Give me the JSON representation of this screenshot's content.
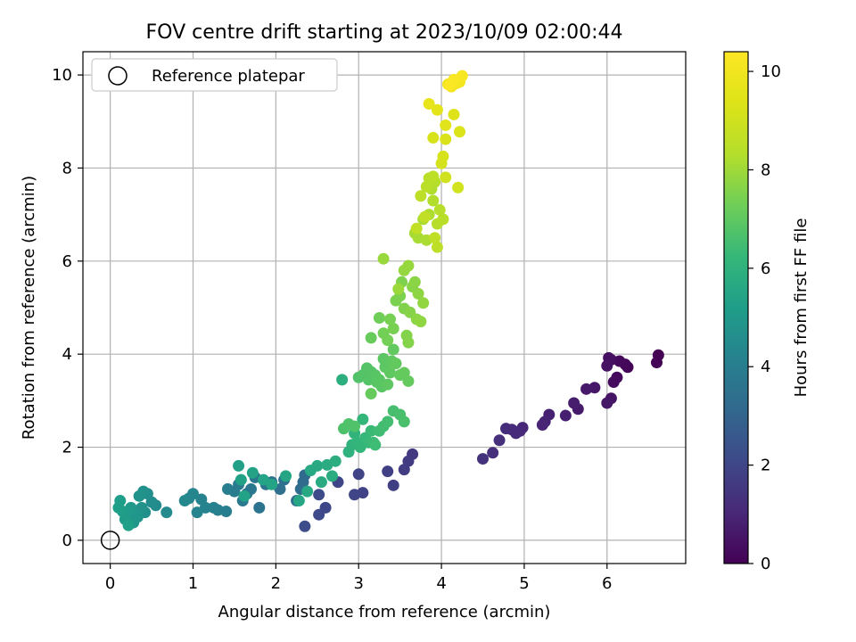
{
  "chart_data": {
    "type": "scatter",
    "title": "FOV centre drift starting at 2023/10/09 02:00:44",
    "xlabel": "Angular distance from reference (arcmin)",
    "ylabel": "Rotation from reference (arcmin)",
    "xlim": [
      -0.33,
      6.95
    ],
    "ylim": [
      -0.5,
      10.5
    ],
    "xticks": [
      0,
      1,
      2,
      3,
      4,
      5,
      6
    ],
    "yticks": [
      0,
      2,
      4,
      6,
      8,
      10
    ],
    "grid": true,
    "legend": {
      "position": "top-left",
      "entries": [
        "Reference platepar"
      ]
    },
    "reference_point": {
      "x": 0,
      "y": 0,
      "label": "Reference platepar"
    },
    "colorbar": {
      "label": "Hours from first FF file",
      "range": [
        0,
        10.4
      ],
      "ticks": [
        0,
        2,
        4,
        6,
        8,
        10
      ],
      "colormap": "viridis"
    },
    "series": [
      {
        "color_key": "hours",
        "points": [
          [
            6.62,
            3.98,
            0.0
          ],
          [
            6.6,
            3.82,
            0.05
          ],
          [
            6.25,
            3.72,
            0.1
          ],
          [
            6.22,
            3.78,
            0.15
          ],
          [
            6.15,
            3.85,
            0.2
          ],
          [
            6.12,
            3.5,
            0.25
          ],
          [
            6.08,
            3.4,
            0.3
          ],
          [
            6.05,
            3.88,
            0.35
          ],
          [
            6.02,
            3.92,
            0.4
          ],
          [
            6.0,
            3.75,
            0.45
          ],
          [
            6.05,
            3.05,
            0.5
          ],
          [
            6.0,
            2.95,
            0.55
          ],
          [
            5.85,
            3.28,
            0.6
          ],
          [
            5.75,
            3.25,
            0.65
          ],
          [
            5.65,
            2.82,
            0.7
          ],
          [
            5.6,
            2.95,
            0.75
          ],
          [
            5.5,
            2.68,
            0.8
          ],
          [
            5.3,
            2.7,
            0.85
          ],
          [
            5.25,
            2.55,
            0.9
          ],
          [
            5.22,
            2.48,
            0.95
          ],
          [
            4.98,
            2.42,
            1.0
          ],
          [
            4.95,
            2.35,
            1.05
          ],
          [
            4.9,
            2.3,
            1.1
          ],
          [
            4.85,
            2.38,
            1.15
          ],
          [
            4.78,
            2.4,
            1.2
          ],
          [
            4.7,
            2.15,
            1.25
          ],
          [
            4.62,
            1.88,
            1.3
          ],
          [
            4.5,
            1.75,
            1.35
          ],
          [
            3.65,
            1.85,
            1.6
          ],
          [
            3.6,
            1.7,
            1.65
          ],
          [
            3.55,
            1.52,
            1.7
          ],
          [
            3.42,
            1.18,
            1.75
          ],
          [
            3.35,
            1.48,
            1.8
          ],
          [
            3.05,
            1.02,
            1.85
          ],
          [
            3.0,
            1.42,
            1.9
          ],
          [
            2.95,
            0.98,
            1.95
          ],
          [
            2.75,
            1.25,
            2.0
          ],
          [
            2.6,
            0.7,
            2.05
          ],
          [
            2.52,
            0.55,
            2.1
          ],
          [
            2.52,
            0.98,
            2.15
          ],
          [
            2.35,
            0.3,
            2.2
          ],
          [
            2.35,
            1.4,
            3.2
          ],
          [
            2.33,
            1.25,
            3.25
          ],
          [
            2.3,
            1.1,
            3.3
          ],
          [
            2.25,
            0.85,
            3.35
          ],
          [
            2.1,
            1.3,
            3.4
          ],
          [
            2.05,
            1.1,
            3.45
          ],
          [
            1.95,
            1.25,
            3.5
          ],
          [
            1.88,
            1.2,
            3.55
          ],
          [
            1.8,
            0.7,
            3.6
          ],
          [
            1.75,
            1.35,
            3.65
          ],
          [
            1.7,
            1.1,
            3.7
          ],
          [
            1.65,
            1.0,
            3.75
          ],
          [
            1.6,
            0.85,
            3.8
          ],
          [
            1.55,
            1.2,
            3.85
          ],
          [
            1.5,
            1.05,
            3.9
          ],
          [
            1.42,
            1.1,
            3.95
          ],
          [
            1.4,
            0.62,
            4.0
          ],
          [
            1.3,
            0.65,
            4.05
          ],
          [
            1.25,
            0.7,
            4.1
          ],
          [
            1.15,
            0.7,
            4.15
          ],
          [
            1.1,
            0.88,
            4.2
          ],
          [
            1.05,
            0.6,
            4.25
          ],
          [
            1.0,
            1.0,
            4.3
          ],
          [
            0.95,
            0.9,
            4.35
          ],
          [
            0.9,
            0.85,
            4.4
          ],
          [
            0.68,
            0.6,
            4.45
          ],
          [
            0.55,
            0.75,
            4.5
          ],
          [
            0.5,
            0.82,
            4.55
          ],
          [
            0.45,
            1.0,
            4.6
          ],
          [
            0.42,
            0.6,
            4.65
          ],
          [
            0.4,
            1.05,
            4.7
          ],
          [
            0.38,
            0.7,
            4.75
          ],
          [
            0.35,
            0.95,
            4.8
          ],
          [
            0.33,
            0.5,
            4.85
          ],
          [
            0.3,
            0.55,
            4.9
          ],
          [
            0.28,
            0.38,
            4.95
          ],
          [
            0.25,
            0.7,
            5.0
          ],
          [
            0.2,
            0.6,
            5.05
          ],
          [
            0.18,
            0.45,
            5.1
          ],
          [
            0.15,
            0.62,
            5.15
          ],
          [
            0.12,
            0.85,
            5.2
          ],
          [
            0.1,
            0.7,
            5.25
          ],
          [
            0.22,
            0.32,
            5.28
          ],
          [
            1.55,
            1.6,
            5.3
          ],
          [
            1.58,
            1.3,
            5.32
          ],
          [
            1.62,
            0.95,
            5.35
          ],
          [
            1.72,
            1.45,
            5.38
          ],
          [
            1.85,
            1.3,
            5.42
          ],
          [
            1.95,
            1.2,
            5.46
          ],
          [
            2.12,
            1.38,
            5.5
          ],
          [
            2.28,
            0.85,
            5.54
          ],
          [
            2.38,
            1.05,
            5.58
          ],
          [
            2.42,
            1.5,
            5.62
          ],
          [
            2.5,
            1.6,
            5.66
          ],
          [
            2.55,
            1.25,
            5.7
          ],
          [
            2.62,
            1.62,
            5.74
          ],
          [
            2.68,
            1.38,
            5.78
          ],
          [
            2.72,
            1.7,
            5.82
          ],
          [
            2.8,
            3.45,
            5.86
          ],
          [
            2.88,
            1.9,
            6.0
          ],
          [
            2.92,
            2.05,
            6.04
          ],
          [
            2.95,
            2.3,
            6.08
          ],
          [
            2.98,
            2.1,
            6.12
          ],
          [
            3.02,
            2.0,
            6.16
          ],
          [
            3.05,
            2.6,
            6.2
          ],
          [
            3.08,
            2.2,
            6.24
          ],
          [
            3.12,
            2.1,
            6.28
          ],
          [
            3.15,
            2.35,
            6.32
          ],
          [
            3.18,
            2.1,
            6.36
          ],
          [
            3.2,
            2.05,
            6.4
          ],
          [
            3.25,
            2.35,
            6.44
          ],
          [
            3.3,
            2.45,
            6.48
          ],
          [
            3.35,
            2.55,
            6.52
          ],
          [
            3.42,
            2.78,
            6.56
          ],
          [
            3.5,
            2.7,
            6.6
          ],
          [
            3.55,
            2.55,
            6.64
          ],
          [
            2.82,
            2.4,
            6.7
          ],
          [
            2.88,
            2.5,
            6.72
          ],
          [
            2.95,
            2.45,
            6.74
          ],
          [
            3.0,
            3.5,
            6.76
          ],
          [
            3.05,
            3.55,
            6.78
          ],
          [
            3.1,
            3.7,
            6.8
          ],
          [
            3.12,
            3.45,
            6.82
          ],
          [
            3.15,
            3.62,
            6.84
          ],
          [
            3.2,
            3.55,
            6.86
          ],
          [
            3.22,
            3.4,
            6.88
          ],
          [
            3.25,
            3.45,
            6.9
          ],
          [
            3.28,
            3.3,
            6.92
          ],
          [
            3.3,
            3.9,
            6.94
          ],
          [
            3.32,
            3.72,
            6.96
          ],
          [
            3.35,
            3.35,
            6.98
          ],
          [
            3.38,
            3.6,
            7.0
          ],
          [
            3.4,
            3.85,
            7.02
          ],
          [
            3.42,
            4.1,
            7.04
          ],
          [
            3.45,
            3.8,
            7.06
          ],
          [
            3.5,
            3.55,
            7.08
          ],
          [
            3.55,
            3.6,
            7.1
          ],
          [
            3.6,
            3.42,
            7.12
          ],
          [
            3.15,
            3.15,
            7.14
          ],
          [
            3.15,
            4.35,
            7.16
          ],
          [
            3.25,
            4.78,
            7.3
          ],
          [
            3.3,
            4.45,
            7.33
          ],
          [
            3.35,
            4.3,
            7.36
          ],
          [
            3.38,
            4.75,
            7.39
          ],
          [
            3.42,
            4.55,
            7.42
          ],
          [
            3.45,
            5.15,
            7.45
          ],
          [
            3.5,
            5.25,
            7.48
          ],
          [
            3.52,
            5.55,
            7.51
          ],
          [
            3.55,
            4.98,
            7.54
          ],
          [
            3.58,
            4.4,
            7.57
          ],
          [
            3.6,
            4.25,
            7.6
          ],
          [
            3.62,
            4.9,
            7.63
          ],
          [
            3.65,
            5.45,
            7.66
          ],
          [
            3.68,
            5.55,
            7.69
          ],
          [
            3.7,
            4.75,
            7.72
          ],
          [
            3.72,
            5.3,
            7.75
          ],
          [
            3.75,
            4.7,
            7.78
          ],
          [
            3.78,
            5.1,
            7.81
          ],
          [
            3.55,
            5.8,
            7.84
          ],
          [
            3.6,
            5.9,
            7.87
          ],
          [
            3.3,
            6.05,
            7.9
          ],
          [
            3.48,
            5.4,
            7.93
          ],
          [
            3.68,
            6.6,
            8.1
          ],
          [
            3.72,
            6.5,
            8.13
          ],
          [
            3.78,
            6.9,
            8.16
          ],
          [
            3.82,
            6.45,
            8.19
          ],
          [
            3.85,
            7.0,
            8.22
          ],
          [
            3.88,
            7.55,
            8.25
          ],
          [
            3.9,
            7.3,
            8.28
          ],
          [
            3.92,
            7.7,
            8.31
          ],
          [
            3.95,
            6.8,
            8.34
          ],
          [
            3.98,
            7.1,
            8.37
          ],
          [
            4.02,
            6.9,
            8.4
          ],
          [
            3.82,
            7.6,
            8.43
          ],
          [
            3.85,
            7.78,
            8.46
          ],
          [
            3.9,
            7.82,
            8.49
          ],
          [
            3.75,
            7.4,
            8.52
          ],
          [
            3.95,
            6.3,
            8.55
          ],
          [
            3.92,
            6.5,
            8.58
          ],
          [
            3.8,
            6.95,
            8.61
          ],
          [
            3.7,
            6.7,
            8.64
          ],
          [
            4.05,
            7.8,
            9.0
          ],
          [
            4.2,
            7.58,
            9.05
          ],
          [
            4.0,
            8.1,
            9.1
          ],
          [
            4.02,
            8.25,
            9.15
          ],
          [
            3.9,
            8.65,
            9.2
          ],
          [
            4.05,
            8.62,
            9.25
          ],
          [
            4.22,
            8.78,
            9.3
          ],
          [
            4.15,
            9.15,
            9.4
          ],
          [
            4.05,
            8.92,
            9.5
          ],
          [
            3.95,
            9.25,
            9.6
          ],
          [
            3.85,
            9.38,
            9.7
          ],
          [
            4.08,
            9.8,
            9.9
          ],
          [
            4.12,
            9.75,
            10.0
          ],
          [
            4.18,
            9.82,
            10.05
          ],
          [
            4.22,
            9.85,
            10.1
          ],
          [
            4.25,
            9.98,
            10.2
          ],
          [
            4.15,
            9.9,
            10.3
          ],
          [
            4.1,
            9.78,
            10.35
          ]
        ]
      }
    ]
  }
}
